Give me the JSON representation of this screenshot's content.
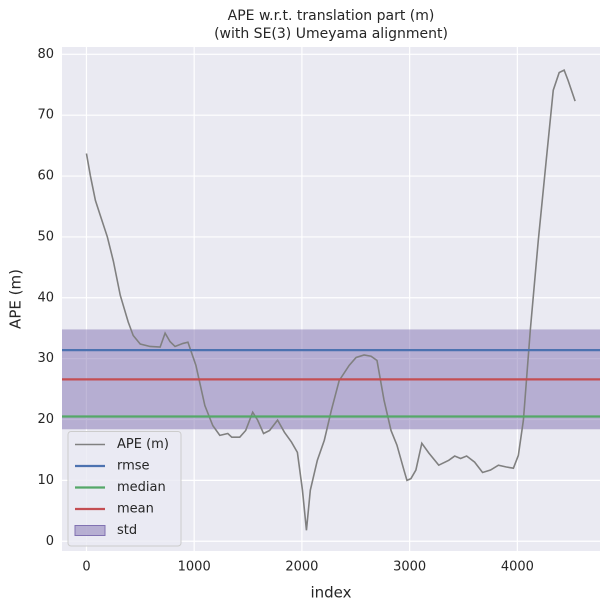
{
  "chart_data": {
    "type": "line",
    "title": [
      "APE w.r.t. translation part (m)",
      "(with SE(3) Umeyama alignment)"
    ],
    "xlabel": "index",
    "ylabel": "APE (m)",
    "xlim": [
      -227,
      4767
    ],
    "ylim": [
      -1.6,
      81.2
    ],
    "xticks": [
      0,
      1000,
      2000,
      3000,
      4000
    ],
    "yticks": [
      0,
      10,
      20,
      30,
      40,
      50,
      60,
      70,
      80
    ],
    "grid": true,
    "legend": "lower left",
    "x": [
      0,
      37,
      83,
      129,
      194,
      250,
      314,
      388,
      434,
      499,
      591,
      684,
      730,
      776,
      822,
      896,
      942,
      1016,
      1099,
      1173,
      1238,
      1312,
      1349,
      1423,
      1478,
      1543,
      1589,
      1644,
      1700,
      1774,
      1838,
      1903,
      1958,
      2005,
      2042,
      2078,
      2143,
      2208,
      2273,
      2346,
      2439,
      2503,
      2577,
      2642,
      2697,
      2762,
      2827,
      2882,
      2947,
      2975,
      3012,
      3058,
      3113,
      3178,
      3270,
      3363,
      3418,
      3473,
      3529,
      3603,
      3677,
      3751,
      3824,
      3898,
      3963,
      4009,
      4056,
      4120,
      4194,
      4268,
      4333,
      4388,
      4434,
      4471,
      4536
    ],
    "series": [
      {
        "name": "APE (m)",
        "color": "#808080",
        "values": [
          63.7,
          60,
          56,
          53.5,
          50,
          46,
          40.4,
          36,
          33.8,
          32.4,
          32,
          31.9,
          34.2,
          32.8,
          32,
          32.5,
          32.7,
          28.9,
          22.3,
          19,
          17.4,
          17.7,
          17.1,
          17.1,
          18.2,
          21.2,
          19.9,
          17.7,
          18.2,
          19.9,
          17.9,
          16.3,
          14.6,
          8.4,
          1.8,
          8.4,
          13.3,
          16.6,
          21.5,
          26.4,
          28.9,
          30.2,
          30.6,
          30.4,
          29.7,
          23.2,
          18.2,
          15.8,
          11.7,
          10,
          10.3,
          11.7,
          16.1,
          14.5,
          12.5,
          13.3,
          14,
          13.6,
          14,
          13,
          11.3,
          11.7,
          12.5,
          12.2,
          12,
          14.1,
          19.9,
          34.7,
          49.4,
          62.6,
          74.1,
          77,
          77.4,
          75.7,
          72.3
        ]
      }
    ],
    "statistics": [
      {
        "name": "rmse",
        "color": "#4c72b0",
        "value": 31.4
      },
      {
        "name": "median",
        "color": "#55a868",
        "value": 20.5
      },
      {
        "name": "mean",
        "color": "#c44e52",
        "value": 26.6
      }
    ],
    "std": {
      "name": "std",
      "color": "#8172b2",
      "value": 8.2
    }
  }
}
